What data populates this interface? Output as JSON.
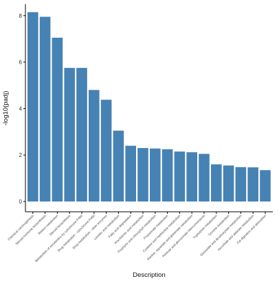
{
  "chart_data": {
    "type": "bar",
    "title": "",
    "xlabel": "Description",
    "ylabel": "-log10(padj)",
    "ylim": [
      0,
      8.5
    ],
    "yticks": [
      "0",
      "2",
      "4",
      "6",
      "8"
    ],
    "grid": false,
    "bar_color": "#4682B4",
    "categories": [
      "Chemical carcinogenesis",
      "Steroid hormone biosynthesis",
      "Retinol metabolism",
      "Steroid biosynthesis",
      "Metabolism of xenobiotics by cytochrome P450",
      "Drug metabolism - cytochrome P450",
      "Drug metabolism - other enzymes",
      "Linoleic acid metabolism",
      "Fatty acid degradation",
      "Arachidonic acid metabolism",
      "Porphyrin and chlorophyll metabolism",
      "Propanoate metabolism",
      "Cysteine and methionine metabolism",
      "Alanine, aspartate and glutamate metabolism",
      "Pentose and glucuronate interconversions",
      "Tryptophan metabolism",
      "Tyrosine metabolism",
      "Glyoxylate and dicarboxylate metabolism",
      "Ascorbate and aldarate metabolism",
      "Fat digestion and absorption"
    ],
    "values": [
      8.15,
      7.95,
      7.05,
      5.75,
      5.75,
      4.8,
      4.38,
      3.05,
      2.4,
      2.3,
      2.28,
      2.25,
      2.15,
      2.12,
      2.05,
      1.6,
      1.55,
      1.48,
      1.47,
      1.35
    ]
  }
}
